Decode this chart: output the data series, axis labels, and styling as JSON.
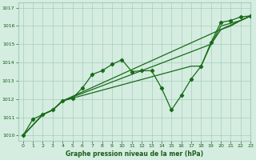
{
  "title": "Graphe pression niveau de la mer (hPa)",
  "bg_color": "#d4ede0",
  "plot_bg_color": "#d4ede0",
  "grid_color": "#a8ccbc",
  "text_color": "#1a5c1a",
  "line_color": "#1a6b1a",
  "xlim": [
    -0.5,
    23
  ],
  "ylim": [
    1009.7,
    1017.3
  ],
  "yticks": [
    1010,
    1011,
    1012,
    1013,
    1014,
    1015,
    1016,
    1017
  ],
  "xticks": [
    0,
    1,
    2,
    3,
    4,
    5,
    6,
    7,
    8,
    9,
    10,
    11,
    12,
    13,
    14,
    15,
    16,
    17,
    18,
    19,
    20,
    21,
    22,
    23
  ],
  "s1_x": [
    0,
    1,
    2,
    3,
    4,
    5,
    6,
    7,
    8,
    9,
    10,
    11,
    12,
    13,
    14,
    15,
    16,
    17,
    18,
    19,
    20,
    21,
    22,
    23
  ],
  "s1_y": [
    1010.0,
    1010.9,
    1011.15,
    1011.4,
    1011.9,
    1012.05,
    1012.6,
    1013.35,
    1013.55,
    1013.9,
    1014.15,
    1013.5,
    1013.55,
    1013.55,
    1012.6,
    1011.4,
    1012.2,
    1013.1,
    1013.8,
    1015.1,
    1016.2,
    1016.3,
    1016.5,
    1016.55
  ],
  "s2_x": [
    0,
    2,
    3,
    4,
    22,
    23
  ],
  "s2_y": [
    1010.0,
    1011.15,
    1011.4,
    1011.9,
    1016.3,
    1016.55
  ],
  "s3_x": [
    0,
    2,
    3,
    4,
    19,
    20,
    21,
    22,
    23
  ],
  "s3_y": [
    1010.0,
    1011.15,
    1011.4,
    1011.9,
    1015.0,
    1016.0,
    1016.15,
    1016.3,
    1016.55
  ],
  "s4_x": [
    0,
    2,
    3,
    4,
    17,
    18,
    19,
    20,
    21,
    22,
    23
  ],
  "s4_y": [
    1010.0,
    1011.15,
    1011.4,
    1011.9,
    1013.8,
    1013.8,
    1015.0,
    1015.8,
    1016.0,
    1016.3,
    1016.55
  ],
  "title_fontsize": 5.5,
  "tick_fontsize": 4.5
}
